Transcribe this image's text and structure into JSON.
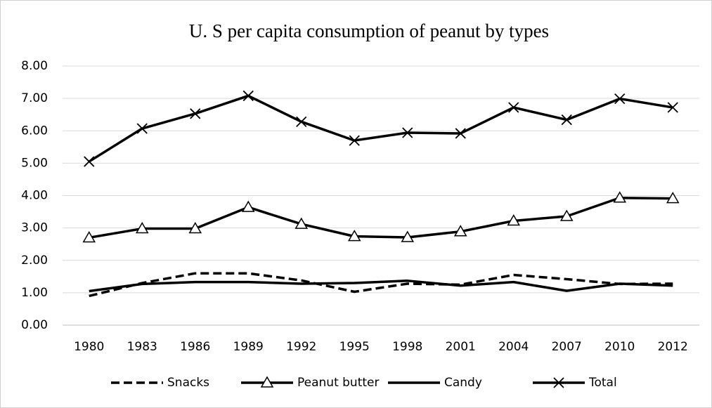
{
  "chart_data": {
    "type": "line",
    "title": "U. S per capita consumption of peanut by types",
    "categories": [
      "1980",
      "1983",
      "1986",
      "1989",
      "1992",
      "1995",
      "1998",
      "2001",
      "2004",
      "2007",
      "2010",
      "2012"
    ],
    "series": [
      {
        "name": "Snacks",
        "color": "#000000",
        "line_style": "dashed",
        "marker": "none",
        "values": [
          0.9,
          1.3,
          1.6,
          1.6,
          1.38,
          1.03,
          1.28,
          1.25,
          1.55,
          1.42,
          1.27,
          1.28
        ]
      },
      {
        "name": "Peanut butter",
        "color": "#000000",
        "line_style": "solid",
        "marker": "triangle",
        "values": [
          2.7,
          2.98,
          2.98,
          3.64,
          3.12,
          2.74,
          2.71,
          2.89,
          3.22,
          3.36,
          3.93,
          3.91
        ]
      },
      {
        "name": "Candy",
        "color": "#000000",
        "line_style": "solid",
        "marker": "none",
        "values": [
          1.05,
          1.27,
          1.33,
          1.33,
          1.28,
          1.3,
          1.37,
          1.22,
          1.33,
          1.06,
          1.28,
          1.22
        ]
      },
      {
        "name": "Total",
        "color": "#000000",
        "line_style": "solid",
        "marker": "x",
        "values": [
          5.05,
          6.07,
          6.53,
          7.08,
          6.28,
          5.7,
          5.94,
          5.92,
          6.72,
          6.34,
          6.99,
          6.72
        ]
      }
    ],
    "ylim": [
      0,
      8
    ],
    "yticks": [
      {
        "value": 0,
        "label": "0.00"
      },
      {
        "value": 1,
        "label": "1.00"
      },
      {
        "value": 2,
        "label": "2.00"
      },
      {
        "value": 3,
        "label": "3.00"
      },
      {
        "value": 4,
        "label": "4.00"
      },
      {
        "value": 5,
        "label": "5.00"
      },
      {
        "value": 6,
        "label": "6.00"
      },
      {
        "value": 7,
        "label": "7.00"
      },
      {
        "value": 8,
        "label": "8.00"
      }
    ],
    "grid": true,
    "legend": "bottom"
  }
}
